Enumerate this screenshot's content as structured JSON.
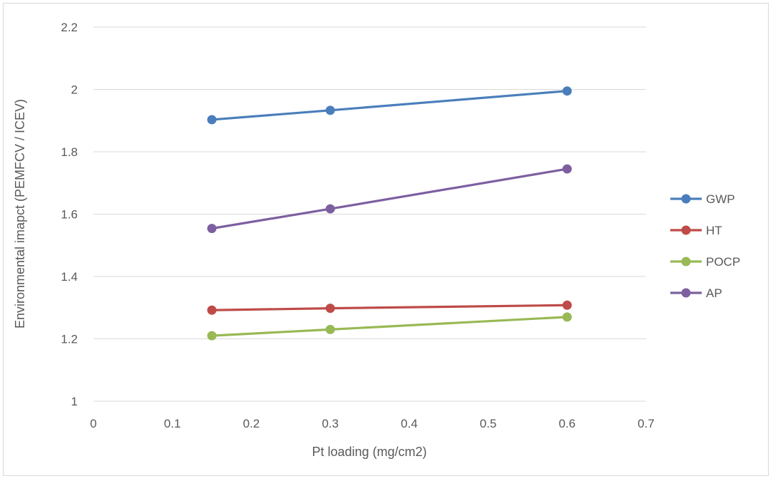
{
  "chart_data": {
    "type": "line",
    "x": [
      0.15,
      0.3,
      0.6
    ],
    "series": [
      {
        "name": "GWP",
        "values": [
          1.903,
          1.933,
          1.995
        ],
        "color": "#4a7ebb"
      },
      {
        "name": "HT",
        "values": [
          1.292,
          1.298,
          1.308
        ],
        "color": "#be4b48"
      },
      {
        "name": "POCP",
        "values": [
          1.21,
          1.23,
          1.27
        ],
        "color": "#98b954"
      },
      {
        "name": "AP",
        "values": [
          1.554,
          1.617,
          1.745
        ],
        "color": "#7d5fa0"
      }
    ],
    "xlabel": "Pt loading (mg/cm2)",
    "ylabel": "Environmental imapct (PEMFCV / ICEV)",
    "xlim": [
      0,
      0.7
    ],
    "ylim": [
      1,
      2.2
    ],
    "xticks": [
      "0",
      "0.1",
      "0.2",
      "0.3",
      "0.4",
      "0.5",
      "0.6",
      "0.7"
    ],
    "yticks": [
      "1",
      "1.2",
      "1.4",
      "1.6",
      "1.8",
      "2",
      "2.2"
    ],
    "grid": "horizontal",
    "legend_position": "right"
  }
}
